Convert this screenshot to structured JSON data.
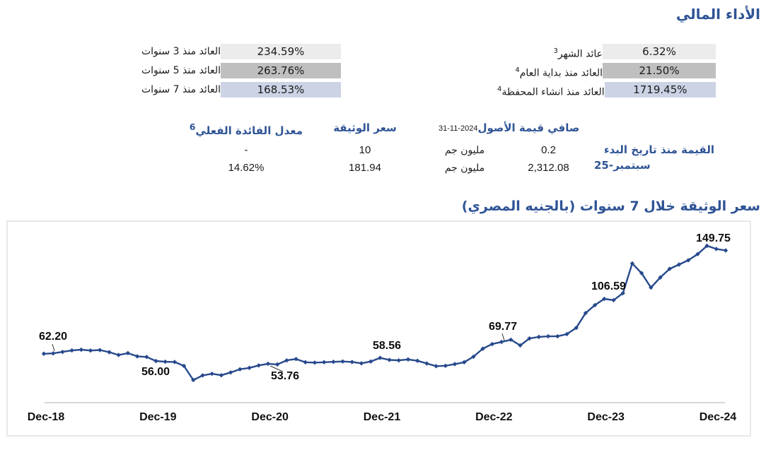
{
  "colors": {
    "accent_blue": "#2F5496",
    "line_navy": "#27498c",
    "axis_gray": "#bfbfbf",
    "chart_border": "#e8e8e8",
    "row_bg_1": "#ececec",
    "row_bg_2": "#bfbfbf",
    "row_bg_3": "#ccd3e5"
  },
  "page_title": "الأداء المالي",
  "returns_right": {
    "rows": [
      {
        "label": "عائد الشهر",
        "sup": "3",
        "value": "6.32%",
        "bg": "#ececec"
      },
      {
        "label": "العائد منذ بداية العام",
        "sup": "4",
        "value": "21.50%",
        "bg": "#bfbfbf"
      },
      {
        "label": "العائد منذ انشاء المحفظة",
        "sup": "4",
        "value": "1719.45%",
        "bg": "#ccd3e5"
      }
    ]
  },
  "returns_left": {
    "rows": [
      {
        "label": "العائد منذ 3 سنوات",
        "sup": "",
        "value": "234.59%",
        "bg": "#ececec"
      },
      {
        "label": "العائد منذ 5 سنوات",
        "sup": "",
        "value": "263.76%",
        "bg": "#bfbfbf"
      },
      {
        "label": "العائد منذ 7 سنوات",
        "sup": "",
        "value": "168.53%",
        "bg": "#ccd3e5"
      }
    ]
  },
  "stats": {
    "rate": {
      "header": "معدل الفائدة الفعلي",
      "sup": "6",
      "row1": "-",
      "row2": "14.62%"
    },
    "price": {
      "header": "سعر الوثيقة",
      "row1": "10",
      "row2": "181.94"
    },
    "nav": {
      "header": "صافي قيمة الأصول",
      "date": "31-11-2024",
      "row1_value": "0.2",
      "row1_unit": "مليون جم",
      "row2_value": "2,312.08",
      "row2_unit": "مليون جم"
    },
    "since_start": {
      "line1": "القيمة منذ تاريخ البدء",
      "line2": "سبتمبر-25"
    }
  },
  "chart_data": {
    "type": "line",
    "title": "سعر الوثيقة خلال 7 سنوات (بالجنيه المصري)",
    "xlabel": "",
    "ylabel": "",
    "grid": false,
    "legend": "none",
    "x_tick_labels": [
      "Dec-18",
      "Dec-19",
      "Dec-20",
      "Dec-21",
      "Dec-22",
      "Dec-23",
      "Dec-24"
    ],
    "ylim": [
      38,
      158
    ],
    "series": [
      {
        "name": "سعر الوثيقة",
        "values": [
          61.9,
          62.2,
          63.4,
          64.6,
          65.2,
          64.5,
          64.9,
          63.2,
          60.9,
          62.4,
          59.8,
          59.3,
          56.0,
          55.4,
          55.2,
          52.0,
          40.5,
          44.3,
          45.6,
          44.4,
          46.7,
          49.3,
          50.4,
          52.4,
          53.76,
          53.2,
          56.5,
          57.6,
          55.0,
          54.7,
          55.0,
          55.3,
          55.6,
          55.2,
          54.1,
          55.6,
          58.56,
          56.9,
          56.5,
          57.3,
          56.2,
          54.0,
          51.8,
          52.1,
          53.5,
          55.0,
          59.5,
          66.0,
          69.77,
          71.5,
          73.3,
          68.7,
          74.4,
          75.6,
          76.1,
          76.1,
          77.9,
          83.0,
          95.0,
          101.5,
          106.59,
          105.5,
          111.2,
          135.4,
          127.5,
          115.8,
          124.0,
          131.0,
          134.5,
          138.0,
          143.0,
          149.75,
          147.2,
          146.0
        ]
      }
    ],
    "annotations": [
      {
        "label": "62.20",
        "index": 1
      },
      {
        "label": "56.00",
        "index": 12
      },
      {
        "label": "53.76",
        "index": 24
      },
      {
        "label": "58.56",
        "index": 36
      },
      {
        "label": "69.77",
        "index": 48
      },
      {
        "label": "106.59",
        "index": 60
      },
      {
        "label": "149.75",
        "index": 71
      }
    ]
  }
}
